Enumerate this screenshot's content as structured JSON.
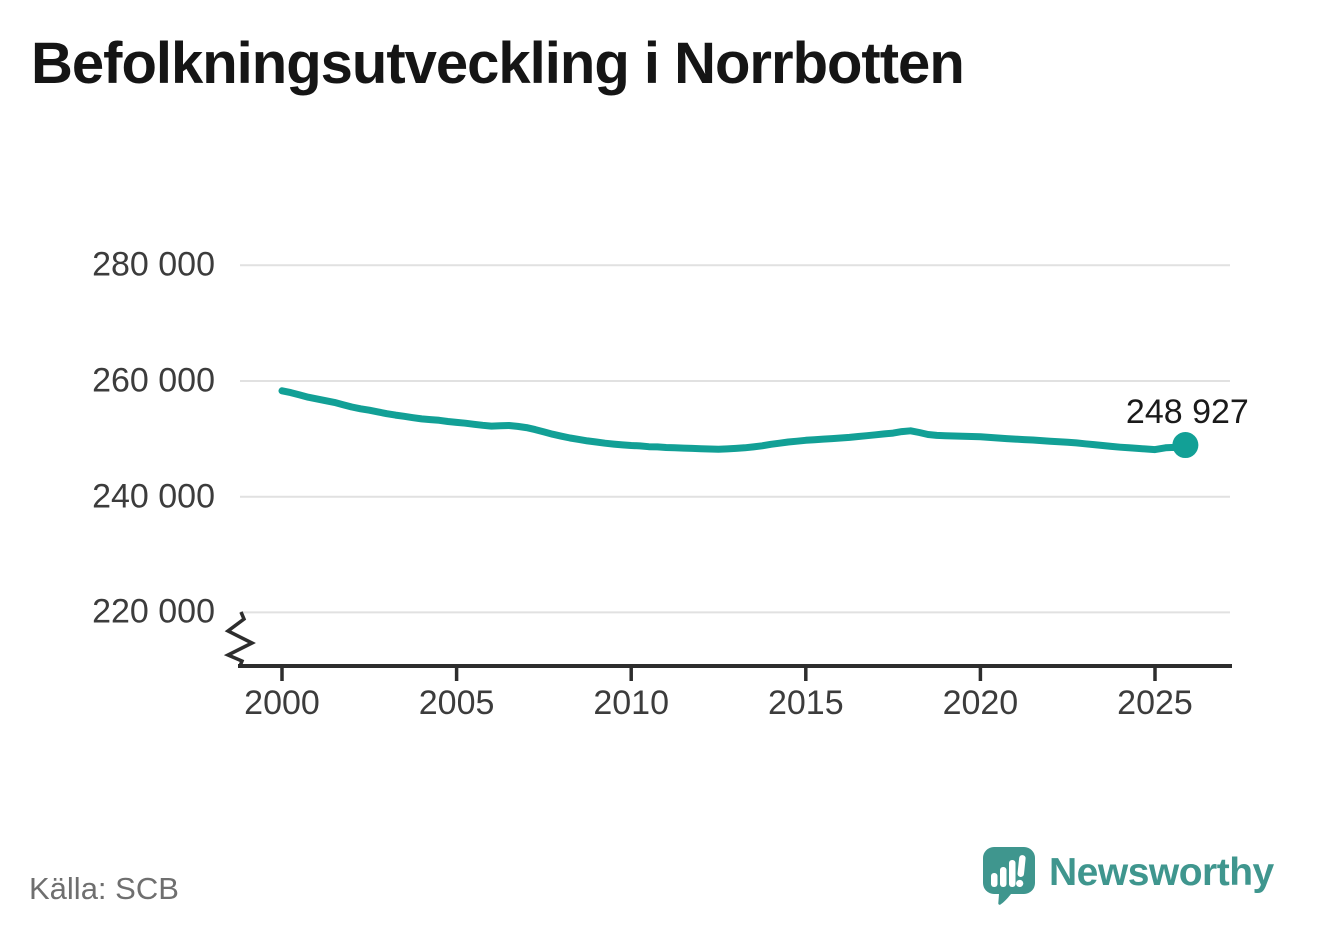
{
  "header": {
    "title": "Befolkningsutveckling i Norrbotten"
  },
  "footer": {
    "source_label": "Källa: SCB",
    "brand_name": "Newsworthy"
  },
  "colors": {
    "line": "#12a096",
    "grid": "#e1e1e1",
    "axis": "#2d2d2d",
    "tick_text": "#3c3c3c",
    "title_text": "#151515",
    "source_text": "#6f6f6f",
    "brand_teal": "#3f968e",
    "background": "#ffffff"
  },
  "chart_data": {
    "type": "line",
    "title": "Befolkningsutveckling i Norrbotten",
    "xlabel": "",
    "ylabel": "",
    "legend": "none",
    "grid": "horizontal",
    "x_range": [
      2000,
      2027.2
    ],
    "y_range_visible": [
      214000,
      284000
    ],
    "y_axis": {
      "broken_at_bottom": true,
      "ticks": [
        {
          "value": 280000,
          "label": "280 000"
        },
        {
          "value": 260000,
          "label": "260 000"
        },
        {
          "value": 240000,
          "label": "240 000"
        },
        {
          "value": 220000,
          "label": "220 000"
        }
      ]
    },
    "x_axis": {
      "ticks": [
        {
          "value": 2000,
          "label": "2000"
        },
        {
          "value": 2005,
          "label": "2005"
        },
        {
          "value": 2010,
          "label": "2010"
        },
        {
          "value": 2015,
          "label": "2015"
        },
        {
          "value": 2020,
          "label": "2020"
        },
        {
          "value": 2025,
          "label": "2025"
        }
      ]
    },
    "end_label": "248 927",
    "end_value": 248927,
    "series": [
      {
        "name": "Befolkning Norrbotten",
        "points": [
          [
            2000.0,
            258300
          ],
          [
            2000.25,
            258000
          ],
          [
            2000.5,
            257600
          ],
          [
            2000.75,
            257200
          ],
          [
            2001.0,
            256900
          ],
          [
            2001.25,
            256600
          ],
          [
            2001.5,
            256300
          ],
          [
            2001.75,
            255900
          ],
          [
            2002.0,
            255500
          ],
          [
            2002.25,
            255200
          ],
          [
            2002.5,
            254950
          ],
          [
            2002.75,
            254650
          ],
          [
            2003.0,
            254350
          ],
          [
            2003.25,
            254100
          ],
          [
            2003.5,
            253900
          ],
          [
            2003.75,
            253650
          ],
          [
            2004.0,
            253450
          ],
          [
            2004.25,
            253320
          ],
          [
            2004.5,
            253200
          ],
          [
            2004.75,
            253000
          ],
          [
            2005.0,
            252850
          ],
          [
            2005.25,
            252700
          ],
          [
            2005.5,
            252520
          ],
          [
            2005.75,
            252350
          ],
          [
            2006.0,
            252200
          ],
          [
            2006.25,
            252260
          ],
          [
            2006.5,
            252300
          ],
          [
            2006.75,
            252150
          ],
          [
            2007.0,
            251950
          ],
          [
            2007.25,
            251600
          ],
          [
            2007.5,
            251200
          ],
          [
            2007.75,
            250800
          ],
          [
            2008.0,
            250450
          ],
          [
            2008.25,
            250150
          ],
          [
            2008.5,
            249900
          ],
          [
            2008.75,
            249650
          ],
          [
            2009.0,
            249450
          ],
          [
            2009.25,
            249250
          ],
          [
            2009.5,
            249100
          ],
          [
            2009.75,
            248950
          ],
          [
            2010.0,
            248850
          ],
          [
            2010.25,
            248780
          ],
          [
            2010.5,
            248650
          ],
          [
            2010.75,
            248600
          ],
          [
            2011.0,
            248500
          ],
          [
            2011.25,
            248450
          ],
          [
            2011.5,
            248400
          ],
          [
            2011.75,
            248350
          ],
          [
            2012.0,
            248300
          ],
          [
            2012.25,
            248250
          ],
          [
            2012.5,
            248200
          ],
          [
            2012.75,
            248260
          ],
          [
            2013.0,
            248350
          ],
          [
            2013.25,
            248450
          ],
          [
            2013.5,
            248600
          ],
          [
            2013.75,
            248800
          ],
          [
            2014.0,
            249050
          ],
          [
            2014.25,
            249250
          ],
          [
            2014.5,
            249450
          ],
          [
            2014.75,
            249600
          ],
          [
            2015.0,
            249750
          ],
          [
            2015.25,
            249850
          ],
          [
            2015.5,
            249950
          ],
          [
            2015.75,
            250050
          ],
          [
            2016.0,
            250150
          ],
          [
            2016.25,
            250250
          ],
          [
            2016.5,
            250400
          ],
          [
            2016.75,
            250550
          ],
          [
            2017.0,
            250700
          ],
          [
            2017.25,
            250850
          ],
          [
            2017.5,
            251000
          ],
          [
            2017.75,
            251250
          ],
          [
            2018.0,
            251400
          ],
          [
            2018.25,
            251100
          ],
          [
            2018.5,
            250750
          ],
          [
            2018.75,
            250600
          ],
          [
            2019.0,
            250550
          ],
          [
            2019.25,
            250500
          ],
          [
            2019.5,
            250460
          ],
          [
            2019.75,
            250400
          ],
          [
            2020.0,
            250350
          ],
          [
            2020.25,
            250250
          ],
          [
            2020.5,
            250150
          ],
          [
            2020.75,
            250050
          ],
          [
            2021.0,
            249950
          ],
          [
            2021.25,
            249870
          ],
          [
            2021.5,
            249800
          ],
          [
            2021.75,
            249700
          ],
          [
            2022.0,
            249600
          ],
          [
            2022.25,
            249500
          ],
          [
            2022.5,
            249400
          ],
          [
            2022.75,
            249300
          ],
          [
            2023.0,
            249150
          ],
          [
            2023.25,
            249000
          ],
          [
            2023.5,
            248850
          ],
          [
            2023.75,
            248700
          ],
          [
            2024.0,
            248550
          ],
          [
            2024.25,
            248450
          ],
          [
            2024.5,
            248350
          ],
          [
            2024.75,
            248250
          ],
          [
            2025.0,
            248150
          ],
          [
            2025.3,
            248450
          ],
          [
            2025.55,
            248520
          ],
          [
            2025.7,
            248480
          ],
          [
            2025.87,
            248927
          ]
        ]
      }
    ]
  }
}
